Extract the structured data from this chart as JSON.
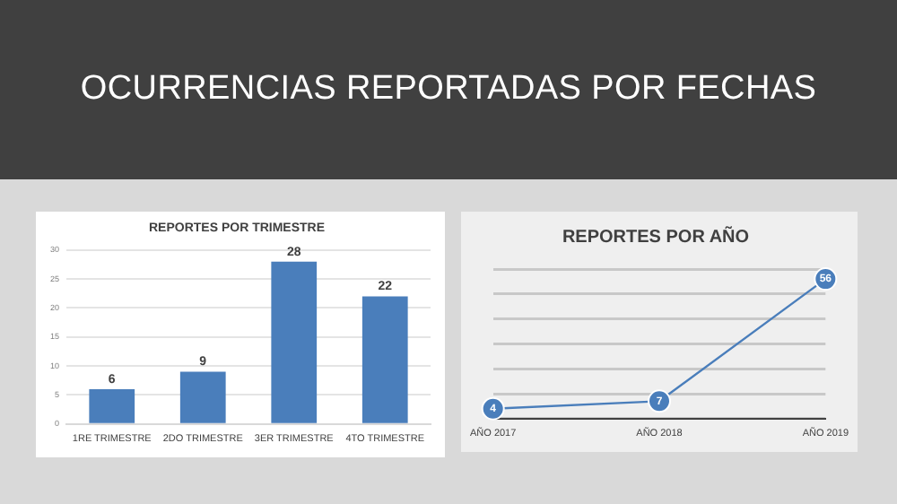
{
  "chart_data": [
    {
      "type": "other",
      "title": "OCURRENCIAS REPORTADAS POR FECHAS"
    },
    {
      "type": "bar",
      "title": "REPORTES POR TRIMESTRE",
      "categories": [
        "1RE TRIMESTRE",
        "2DO TRIMESTRE",
        "3ER TRIMESTRE",
        "4TO TRIMESTRE"
      ],
      "values": [
        6,
        9,
        28,
        22
      ],
      "color": "#4a7ebb",
      "ylim": [
        0,
        30
      ],
      "yticks": [
        0,
        5,
        10,
        15,
        20,
        25,
        30
      ],
      "grid": "y",
      "data_labels": true
    },
    {
      "type": "line",
      "title": "REPORTES POR AÑO",
      "categories": [
        "AÑO 2017",
        "AÑO 2018",
        "AÑO 2019"
      ],
      "values": [
        4,
        7,
        56
      ],
      "color": "#4a7ebb",
      "grid": "y",
      "tick_labels": "x",
      "marker": "circle",
      "data_labels": true
    }
  ]
}
